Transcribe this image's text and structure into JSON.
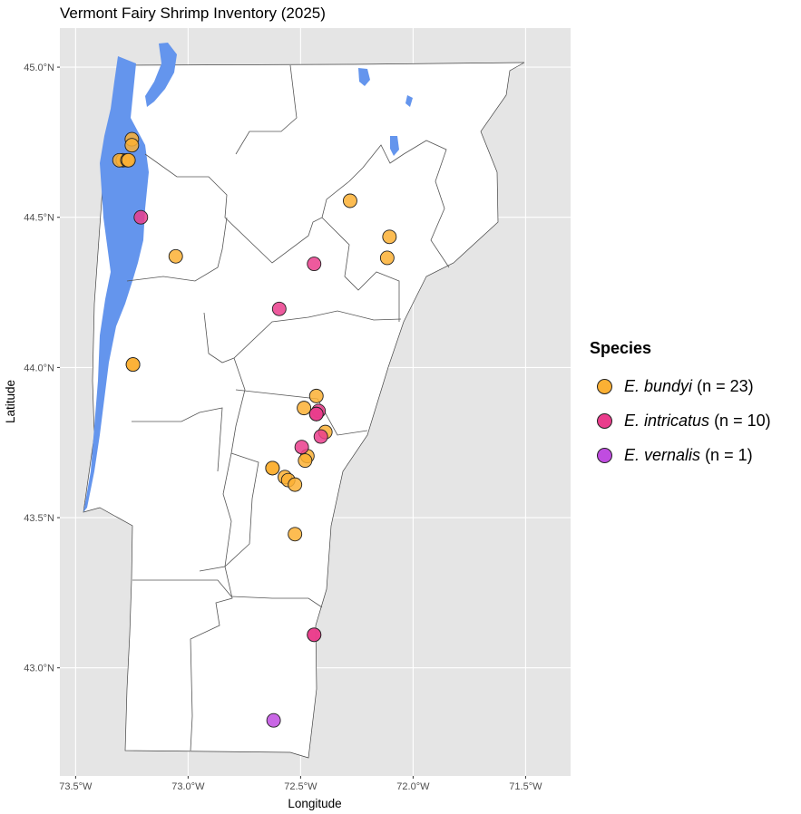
{
  "title": "Vermont Fairy Shrimp Inventory (2025)",
  "colors": {
    "panel_bg": "#e5e5e5",
    "grid": "#ffffff",
    "land": "#ffffff",
    "water": "#6495ed",
    "county_border": "#555555"
  },
  "chart_data": {
    "type": "scatter",
    "xlabel": "Longitude",
    "ylabel": "Latitude",
    "xlim": [
      -73.57,
      -71.3
    ],
    "ylim": [
      42.64,
      45.13
    ],
    "x_ticks": [
      {
        "value": -73.5,
        "label": "73.5°W"
      },
      {
        "value": -73.0,
        "label": "73.0°W"
      },
      {
        "value": -72.5,
        "label": "72.5°W"
      },
      {
        "value": -72.0,
        "label": "72.0°W"
      },
      {
        "value": -71.5,
        "label": "71.5°W"
      }
    ],
    "y_ticks": [
      {
        "value": 43.0,
        "label": "43.0°N"
      },
      {
        "value": 43.5,
        "label": "43.5°N"
      },
      {
        "value": 44.0,
        "label": "44.0°N"
      },
      {
        "value": 44.5,
        "label": "44.5°N"
      },
      {
        "value": 45.0,
        "label": "45.0°N"
      }
    ],
    "grid": true,
    "legend": {
      "title": "Species",
      "placement": "right",
      "entries": [
        {
          "name": "E. bundyi",
          "count": "(n = 23)",
          "color": "#fbb034"
        },
        {
          "name": "E. intricatus",
          "count": "(n = 10)",
          "color": "#ea3d8c"
        },
        {
          "name": "E. vernalis",
          "count": "(n = 1)",
          "color": "#c04ce0"
        }
      ]
    },
    "series": [
      {
        "name": "E. bundyi",
        "color": "#fbb034",
        "points": [
          [
            -73.29,
            44.69
          ],
          [
            -73.305,
            44.69
          ],
          [
            -73.27,
            44.69
          ],
          [
            -73.265,
            44.69
          ],
          [
            -73.25,
            44.76
          ],
          [
            -73.25,
            44.74
          ],
          [
            -72.28,
            44.555
          ],
          [
            -72.105,
            44.435
          ],
          [
            -72.115,
            44.365
          ],
          [
            -73.055,
            44.37
          ],
          [
            -73.245,
            44.01
          ],
          [
            -73.245,
            44.01
          ],
          [
            -72.43,
            43.905
          ],
          [
            -72.485,
            43.865
          ],
          [
            -72.39,
            43.785
          ],
          [
            -72.47,
            43.705
          ],
          [
            -72.48,
            43.69
          ],
          [
            -72.625,
            43.665
          ],
          [
            -72.625,
            43.665
          ],
          [
            -72.57,
            43.635
          ],
          [
            -72.555,
            43.625
          ],
          [
            -72.525,
            43.61
          ],
          [
            -72.525,
            43.445
          ]
        ]
      },
      {
        "name": "E. intricatus",
        "color": "#ea3d8c",
        "points": [
          [
            -73.21,
            44.5
          ],
          [
            -72.44,
            44.345
          ],
          [
            -72.595,
            44.195
          ],
          [
            -72.42,
            43.855
          ],
          [
            -72.43,
            43.845
          ],
          [
            -72.43,
            43.845
          ],
          [
            -72.41,
            43.77
          ],
          [
            -72.495,
            43.735
          ],
          [
            -72.44,
            43.11
          ],
          [
            -72.44,
            43.11
          ]
        ]
      },
      {
        "name": "E. vernalis",
        "color": "#c04ce0",
        "points": [
          [
            -72.62,
            42.825
          ]
        ]
      }
    ]
  }
}
